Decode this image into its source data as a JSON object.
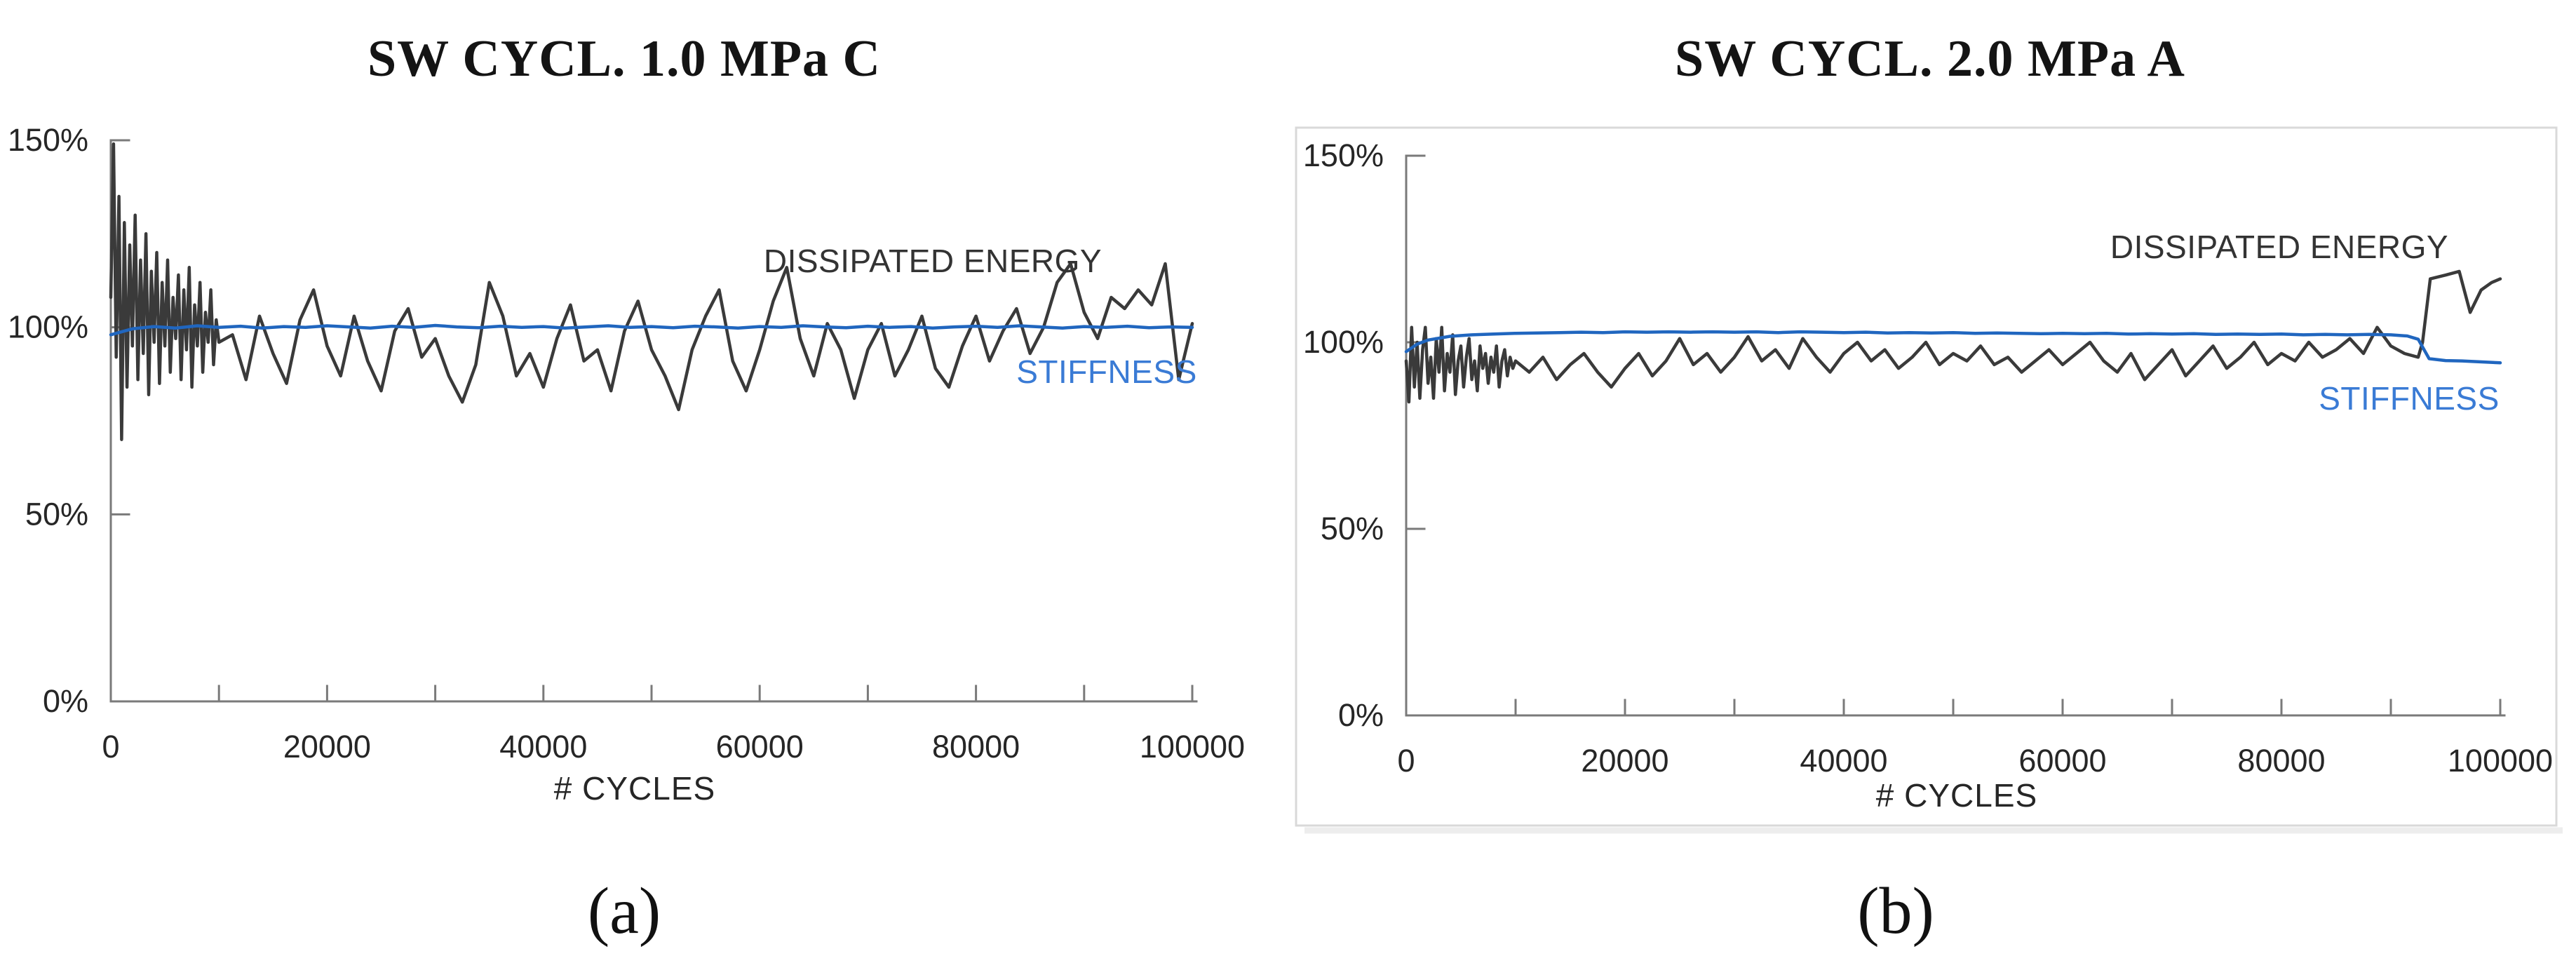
{
  "page": {
    "background": "#ffffff"
  },
  "colors": {
    "dissipated_energy_line": "#3a3a3a",
    "dissipated_energy_label": "#333333",
    "stiffness_line": "#2066bf",
    "stiffness_label": "#3a7bd5",
    "axis": "#7a7a7a",
    "tick_label": "#262626",
    "title": "#141414",
    "panel_border": "#d9d9d9",
    "panel_shadow": "#ededed"
  },
  "chart_data": [
    {
      "id": "a",
      "type": "line",
      "title": "SW CYCL. 1.0 MPa C",
      "panel_label": "(a)",
      "xlabel": "# CYCLES",
      "ylabel": "",
      "xlim": [
        0,
        100000
      ],
      "ylim": [
        0,
        150
      ],
      "y_unit": "%",
      "grid": false,
      "legend": "inline-annotations",
      "panel_border": false,
      "x_minor_tick_step": 10000,
      "x_ticks": [
        {
          "label": "0",
          "value": 0
        },
        {
          "label": "20000",
          "value": 20000
        },
        {
          "label": "40000",
          "value": 40000
        },
        {
          "label": "60000",
          "value": 60000
        },
        {
          "label": "80000",
          "value": 80000
        },
        {
          "label": "100000",
          "value": 100000
        }
      ],
      "y_ticks": [
        {
          "label": "150%",
          "value": 150
        },
        {
          "label": "100%",
          "value": 100
        },
        {
          "label": "50%",
          "value": 50
        },
        {
          "label": "0%",
          "value": 0
        }
      ],
      "series": [
        {
          "name": "DISSIPATED ENERGY",
          "color_key": "dissipated_energy_line",
          "x": [
            0,
            250,
            500,
            750,
            1000,
            1250,
            1500,
            1750,
            2000,
            2250,
            2500,
            2750,
            3000,
            3250,
            3500,
            3750,
            4000,
            4250,
            4500,
            4750,
            5000,
            5250,
            5500,
            5750,
            6000,
            6250,
            6500,
            6750,
            7000,
            7250,
            7500,
            7750,
            8000,
            8250,
            8500,
            8750,
            9000,
            9250,
            9500,
            9750,
            10000,
            11250,
            12500,
            13750,
            15000,
            16250,
            17500,
            18750,
            20000,
            21250,
            22500,
            23750,
            25000,
            26250,
            27500,
            28750,
            30000,
            31250,
            32500,
            33750,
            35000,
            36250,
            37500,
            38750,
            40000,
            41250,
            42500,
            43750,
            45000,
            46250,
            47500,
            48750,
            50000,
            51250,
            52500,
            53750,
            55000,
            56250,
            57500,
            58750,
            60000,
            61250,
            62500,
            63750,
            65000,
            66250,
            67500,
            68750,
            70000,
            71250,
            72500,
            73750,
            75000,
            76250,
            77500,
            78750,
            80000,
            81250,
            82500,
            83750,
            85000,
            86250,
            87500,
            88750,
            90000,
            91250,
            92500,
            93750,
            95000,
            96250,
            97500,
            98750,
            100000
          ],
          "y": [
            108,
            149,
            92,
            135,
            70,
            128,
            84,
            122,
            95,
            130,
            86,
            118,
            93,
            125,
            82,
            115,
            96,
            120,
            85,
            112,
            95,
            118,
            88,
            108,
            97,
            114,
            86,
            110,
            94,
            116,
            84,
            106,
            95,
            112,
            88,
            104,
            96,
            110,
            90,
            102,
            96,
            98,
            86,
            103,
            93,
            85,
            102,
            110,
            95,
            87,
            103,
            91,
            83,
            99,
            105,
            92,
            97,
            87,
            80,
            90,
            112,
            103,
            87,
            93,
            84,
            97,
            106,
            91,
            94,
            83,
            99,
            107,
            94,
            87,
            78,
            94,
            103,
            110,
            91,
            83,
            94,
            107,
            116,
            97,
            87,
            101,
            94,
            81,
            94,
            101,
            87,
            94,
            103,
            89,
            84,
            95,
            103,
            91,
            99,
            105,
            93,
            100,
            112,
            117,
            104,
            97,
            108,
            105,
            110,
            106,
            117,
            86,
            101
          ]
        },
        {
          "name": "STIFFNESS",
          "color_key": "stiffness_line",
          "x": [
            0,
            2000,
            4000,
            6000,
            8000,
            10000,
            12000,
            14000,
            16000,
            18000,
            20000,
            22000,
            24000,
            26000,
            28000,
            30000,
            32000,
            34000,
            36000,
            38000,
            40000,
            42000,
            44000,
            46000,
            48000,
            50000,
            52000,
            54000,
            56000,
            58000,
            60000,
            62000,
            64000,
            66000,
            68000,
            70000,
            72000,
            74000,
            76000,
            78000,
            80000,
            82000,
            84000,
            86000,
            88000,
            90000,
            92000,
            94000,
            96000,
            98000,
            100000
          ],
          "y": [
            98.0,
            99.6,
            100.2,
            99.8,
            100.4,
            100.0,
            100.3,
            99.8,
            100.2,
            100.0,
            100.4,
            100.1,
            99.8,
            100.3,
            100.0,
            100.5,
            100.1,
            99.9,
            100.3,
            100.0,
            100.2,
            99.8,
            100.1,
            100.4,
            100.0,
            100.2,
            99.9,
            100.3,
            100.1,
            99.8,
            100.2,
            100.0,
            100.4,
            100.1,
            99.9,
            100.3,
            100.0,
            100.2,
            99.8,
            100.1,
            100.3,
            100.0,
            100.4,
            100.1,
            99.8,
            100.2,
            100.0,
            100.3,
            99.9,
            100.1,
            100.0
          ]
        }
      ]
    },
    {
      "id": "b",
      "type": "line",
      "title": "SW CYCL. 2.0 MPa A",
      "panel_label": "(b)",
      "xlabel": "# CYCLES",
      "ylabel": "",
      "xlim": [
        0,
        100000
      ],
      "ylim": [
        0,
        150
      ],
      "y_unit": "%",
      "grid": false,
      "legend": "inline-annotations",
      "panel_border": true,
      "x_minor_tick_step": 10000,
      "x_ticks": [
        {
          "label": "0",
          "value": 0
        },
        {
          "label": "20000",
          "value": 20000
        },
        {
          "label": "40000",
          "value": 40000
        },
        {
          "label": "60000",
          "value": 60000
        },
        {
          "label": "80000",
          "value": 80000
        },
        {
          "label": "100000",
          "value": 100000
        }
      ],
      "y_ticks": [
        {
          "label": "150%",
          "value": 150
        },
        {
          "label": "100%",
          "value": 100
        },
        {
          "label": "50%",
          "value": 50
        },
        {
          "label": "0%",
          "value": 0
        }
      ],
      "series": [
        {
          "name": "DISSIPATED ENERGY",
          "color_key": "dissipated_energy_line",
          "x": [
            0,
            250,
            500,
            750,
            1000,
            1250,
            1500,
            1750,
            2000,
            2250,
            2500,
            2750,
            3000,
            3250,
            3500,
            3750,
            4000,
            4250,
            4500,
            4750,
            5000,
            5250,
            5500,
            5750,
            6000,
            6250,
            6500,
            6750,
            7000,
            7250,
            7500,
            7750,
            8000,
            8250,
            8500,
            8750,
            9000,
            9250,
            9500,
            9750,
            10000,
            11250,
            12500,
            13750,
            15000,
            16250,
            17500,
            18750,
            20000,
            21250,
            22500,
            23750,
            25000,
            26250,
            27500,
            28750,
            30000,
            31250,
            32500,
            33750,
            35000,
            36250,
            37500,
            38750,
            40000,
            41250,
            42500,
            43750,
            45000,
            46250,
            47500,
            48750,
            50000,
            51250,
            52500,
            53750,
            55000,
            56250,
            57500,
            58750,
            60000,
            61250,
            62500,
            63750,
            65000,
            66250,
            67500,
            68750,
            70000,
            71250,
            72500,
            73750,
            75000,
            76250,
            77500,
            78750,
            80000,
            81250,
            82500,
            83750,
            85000,
            86250,
            87500,
            88750,
            90000,
            91250,
            92500,
            92900,
            93600,
            95000,
            96250,
            97250,
            98250,
            99200,
            100000
          ],
          "y": [
            95,
            84,
            104,
            88,
            100,
            85,
            98,
            104,
            89,
            96,
            85,
            101,
            92,
            104,
            87,
            97,
            92,
            102,
            86,
            95,
            99,
            88,
            96,
            101,
            90,
            95,
            87,
            99,
            93,
            97,
            89,
            96,
            92,
            99,
            88,
            95,
            98,
            91,
            96,
            93,
            95,
            92,
            96,
            90,
            94,
            97,
            92,
            88,
            93,
            97,
            91,
            95,
            101,
            94,
            97,
            92,
            96,
            101.5,
            95,
            98,
            93,
            101,
            96,
            92,
            97,
            100,
            95,
            98,
            93,
            96,
            100,
            94,
            97,
            95,
            99,
            94,
            96,
            92,
            95,
            98,
            94,
            97,
            100,
            95,
            92,
            97,
            90,
            94,
            98,
            91,
            95,
            99,
            93,
            96,
            100,
            94,
            97,
            95,
            100,
            96,
            98,
            101,
            97,
            104,
            99,
            97,
            96,
            100,
            117,
            118,
            119,
            108,
            114,
            116,
            117
          ]
        },
        {
          "name": "STIFFNESS",
          "color_key": "stiffness_line",
          "x": [
            0,
            1000,
            2000,
            4000,
            6000,
            8000,
            10000,
            12000,
            14000,
            16000,
            18000,
            20000,
            22000,
            24000,
            26000,
            28000,
            30000,
            32000,
            34000,
            36000,
            38000,
            40000,
            42000,
            44000,
            46000,
            48000,
            50000,
            52000,
            54000,
            56000,
            58000,
            60000,
            62000,
            64000,
            66000,
            68000,
            70000,
            72000,
            74000,
            76000,
            78000,
            80000,
            82000,
            84000,
            86000,
            88000,
            90000,
            91500,
            92500,
            93500,
            95000,
            96500,
            98000,
            100000
          ],
          "y": [
            97.5,
            99.5,
            100.6,
            101.6,
            102.0,
            102.2,
            102.4,
            102.5,
            102.6,
            102.7,
            102.6,
            102.8,
            102.7,
            102.8,
            102.7,
            102.8,
            102.7,
            102.8,
            102.6,
            102.8,
            102.7,
            102.6,
            102.7,
            102.5,
            102.6,
            102.5,
            102.6,
            102.4,
            102.5,
            102.4,
            102.3,
            102.4,
            102.3,
            102.4,
            102.2,
            102.3,
            102.2,
            102.3,
            102.1,
            102.2,
            102.1,
            102.2,
            102.0,
            102.1,
            102.0,
            102.1,
            102.0,
            101.7,
            100.8,
            95.6,
            95.1,
            95.0,
            94.8,
            94.5
          ]
        }
      ]
    }
  ]
}
